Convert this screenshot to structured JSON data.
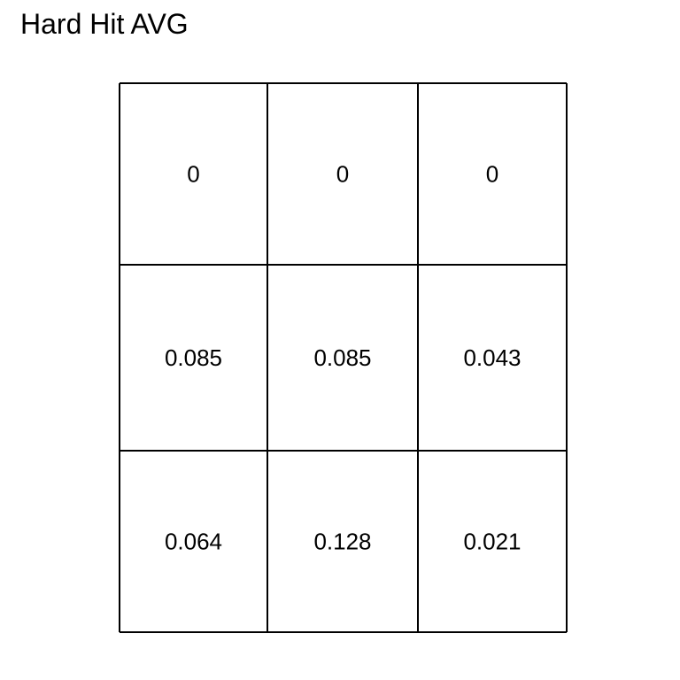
{
  "chart_data": {
    "type": "heatmap",
    "title": "Hard Hit AVG",
    "rows": 3,
    "cols": 3,
    "values": [
      [
        "0",
        "0",
        "0"
      ],
      [
        "0.085",
        "0.085",
        "0.043"
      ],
      [
        "0.064",
        "0.128",
        "0.021"
      ]
    ]
  },
  "colors": {
    "line": "#000000",
    "text": "#000000",
    "background": "#ffffff"
  }
}
